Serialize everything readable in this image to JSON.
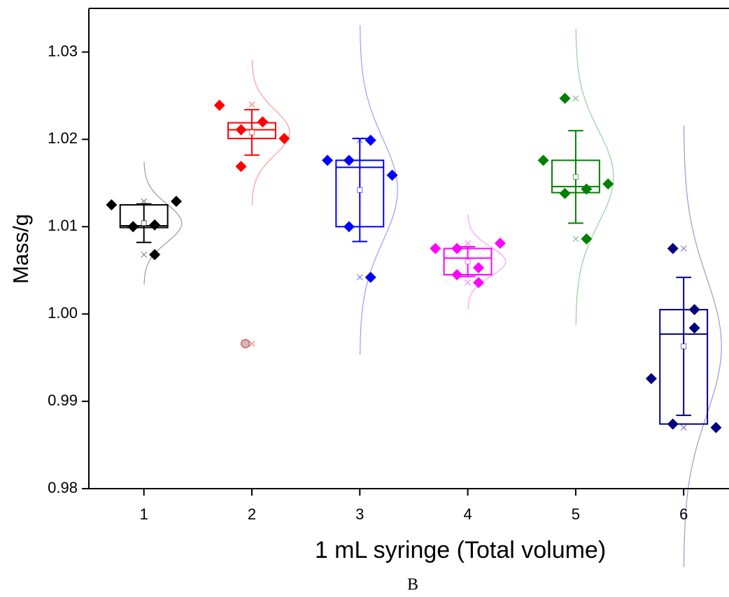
{
  "chart_data": {
    "type": "box",
    "xlabel": "1 mL syringe (Total volume)",
    "ylabel": "Mass/g",
    "caption": "B",
    "xlim": [
      0.49,
      6.42
    ],
    "xticks": [
      1,
      2,
      3,
      4,
      5,
      6
    ],
    "ylim": [
      0.98,
      1.035
    ],
    "yticks": [
      0.98,
      0.99,
      {
        "value": 1.0,
        "label": "1.00"
      },
      1.01,
      1.02,
      1.03
    ],
    "series": [
      {
        "x": 1,
        "color": "#000000",
        "q1": 1.0099,
        "median": 1.0101,
        "q3": 1.0125,
        "mean": 1.0104,
        "sd": 0.0022,
        "min": 1.0068,
        "max": 1.0129,
        "points": [
          1.0125,
          1.01,
          1.0102,
          1.0129,
          1.01,
          1.0068
        ],
        "outliers": []
      },
      {
        "x": 2,
        "color": "#ff0000",
        "q1": 1.0201,
        "median": 1.0211,
        "q3": 1.0219,
        "mean": 1.0208,
        "sd": 0.0026,
        "min": 0.9966,
        "max": 1.024,
        "points": [
          1.0239,
          1.0211,
          1.022,
          1.0201,
          1.0169
        ],
        "outliers": [
          0.9966
        ]
      },
      {
        "x": 3,
        "color": "#0000ff",
        "q1": 1.01,
        "median": 1.0168,
        "q3": 1.0176,
        "mean": 1.0142,
        "sd": 0.0059,
        "min": 1.0042,
        "max": 1.0199,
        "points": [
          1.0176,
          1.0176,
          1.0199,
          1.0159,
          1.01,
          1.0042
        ],
        "outliers": []
      },
      {
        "x": 4,
        "color": "#ff00ff",
        "q1": 1.0045,
        "median": 1.0064,
        "q3": 1.0075,
        "mean": 1.006,
        "sd": 0.0017,
        "min": 1.0036,
        "max": 1.0081,
        "points": [
          1.0075,
          1.0075,
          1.0053,
          1.0081,
          1.0045,
          1.0036
        ],
        "outliers": []
      },
      {
        "x": 5,
        "color": "#008000",
        "q1": 1.0139,
        "median": 1.0146,
        "q3": 1.0176,
        "mean": 1.0157,
        "sd": 0.0053,
        "min": 1.0086,
        "max": 1.0247,
        "points": [
          1.0176,
          1.0247,
          1.0086,
          1.0149,
          1.0138,
          1.0143
        ],
        "outliers": []
      },
      {
        "x": 6,
        "color": "#000080",
        "q1": 0.9874,
        "median": 0.9977,
        "q3": 1.0005,
        "mean": 0.9963,
        "sd": 0.0079,
        "min": 0.987,
        "max": 1.0075,
        "points": [
          0.9926,
          1.0075,
          0.9984,
          0.987,
          0.9874,
          1.0005
        ],
        "outliers": []
      }
    ]
  }
}
